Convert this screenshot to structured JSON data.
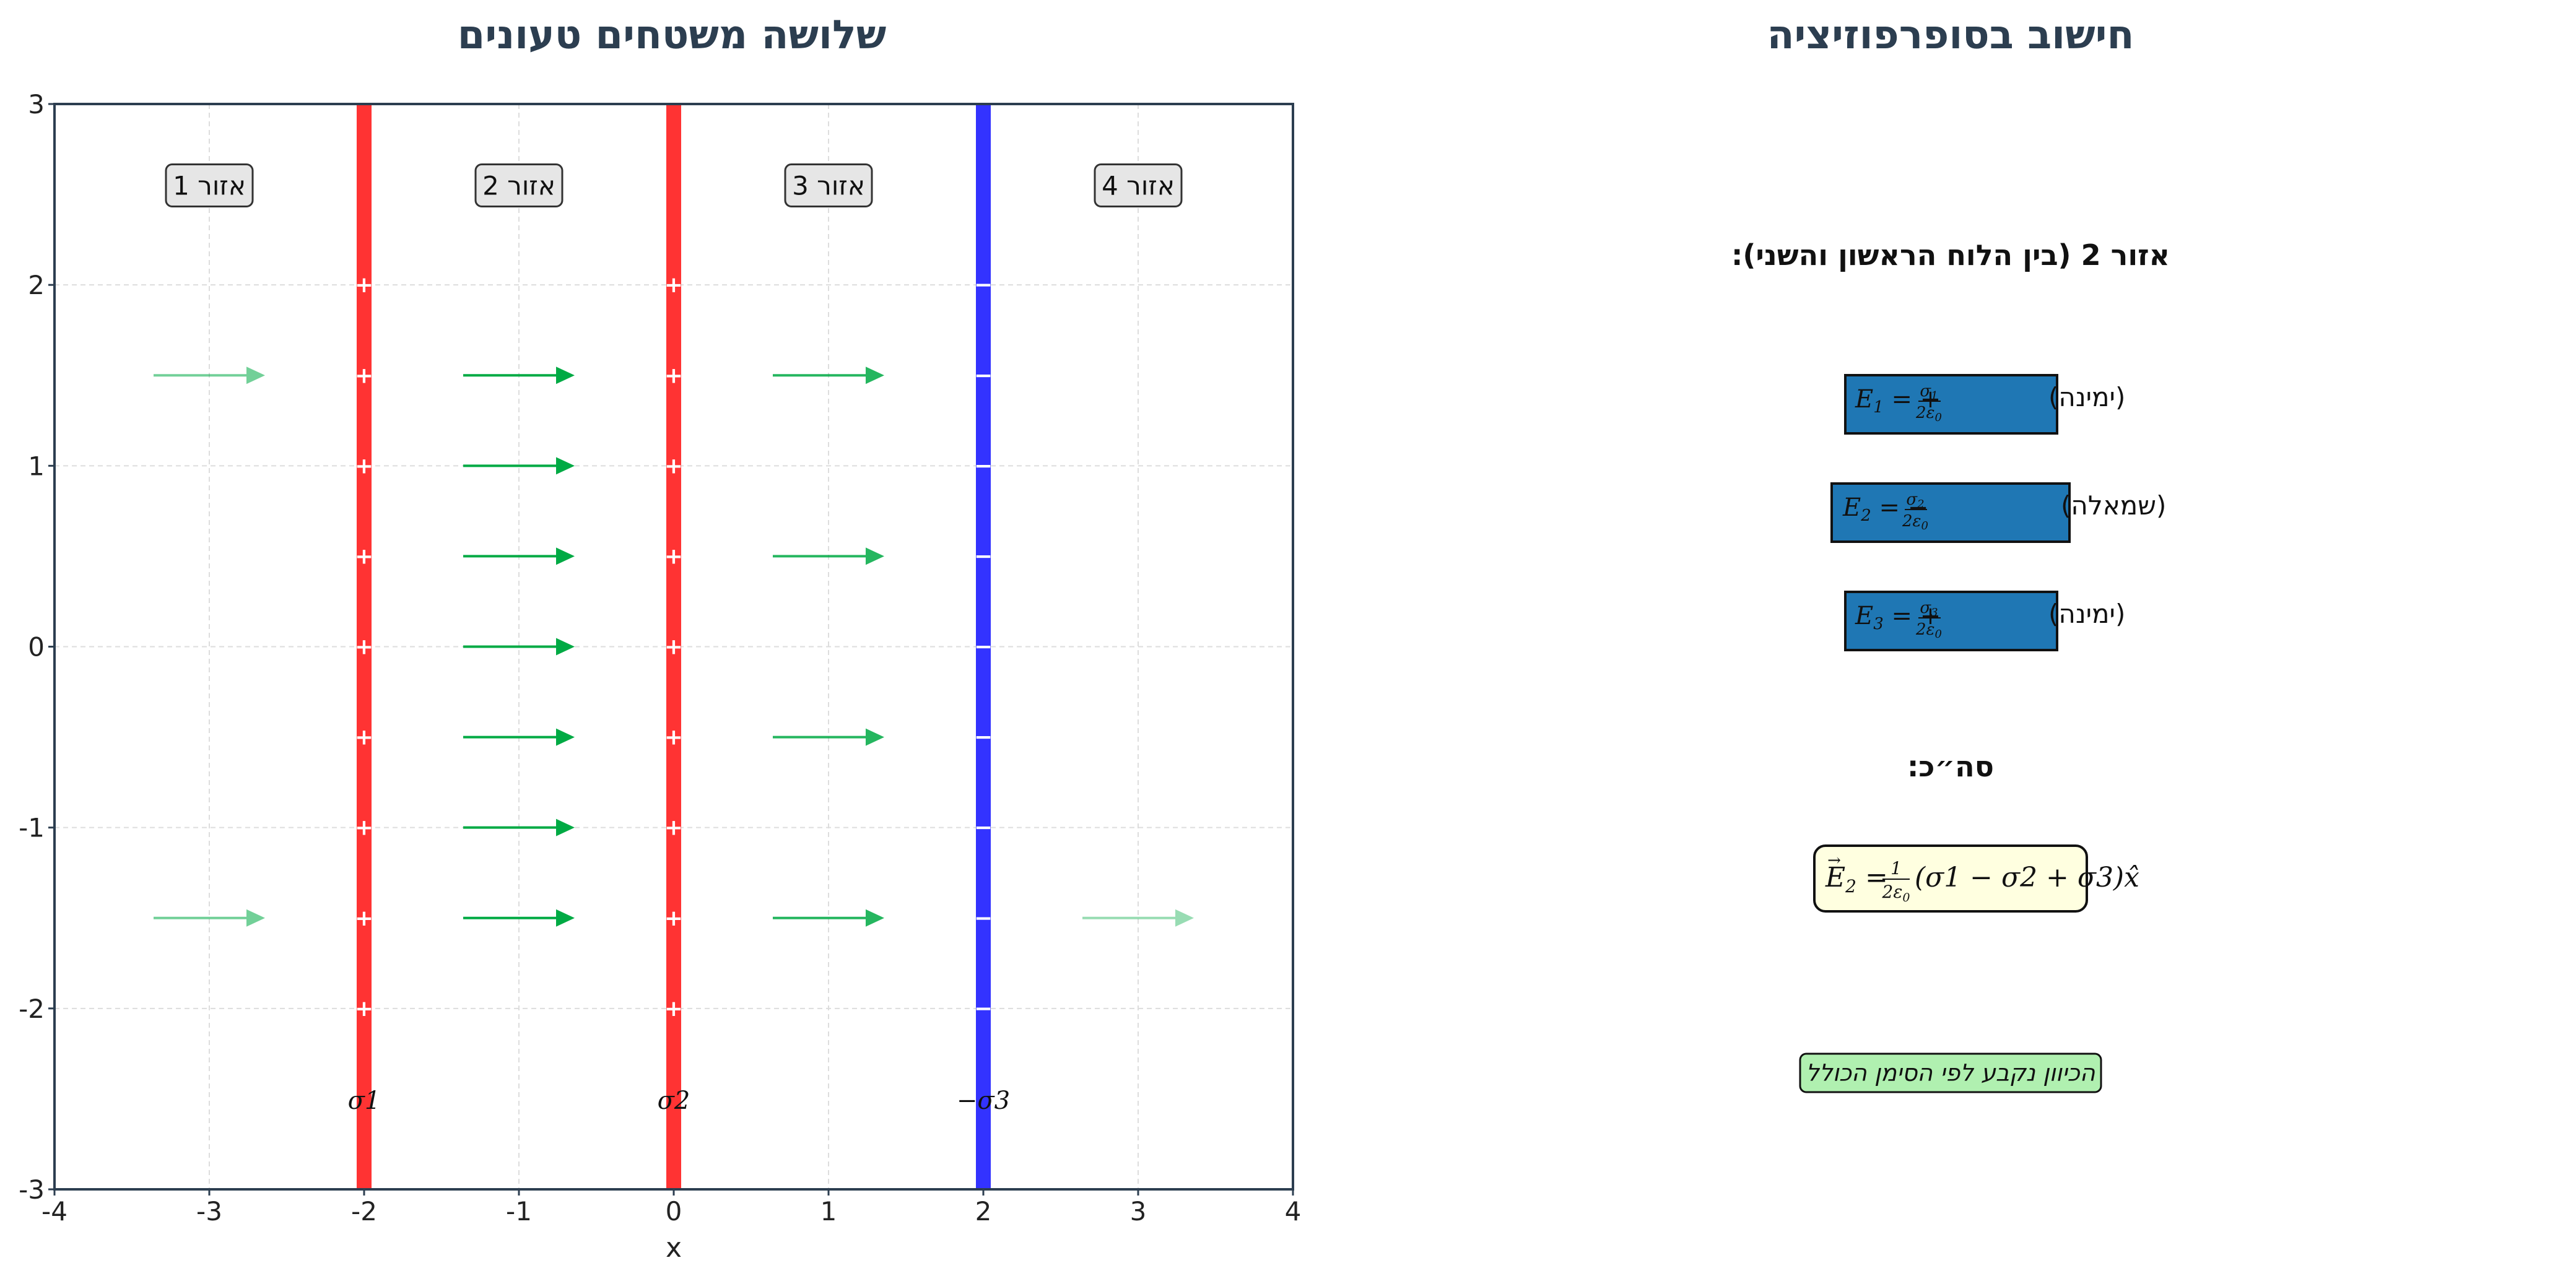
{
  "left_title": "שלושה משטחים טעונים",
  "right_title": "חישוב בסופרפוזיציה",
  "chart_data": {
    "type": "diagram",
    "xlim": [
      -4,
      4
    ],
    "ylim": [
      -3,
      3
    ],
    "x_ticks": [
      "-4",
      "-3",
      "-2",
      "-1",
      "0",
      "1",
      "2",
      "3",
      "4"
    ],
    "y_ticks": [
      "-3",
      "-2",
      "-1",
      "0",
      "1",
      "2",
      "3"
    ],
    "xlabel": "x",
    "grid": true,
    "planes": [
      {
        "x": -2,
        "color": "#ff3333",
        "sign": "+",
        "label": "σ1"
      },
      {
        "x": 0,
        "color": "#ff3333",
        "sign": "+",
        "label": "σ2"
      },
      {
        "x": 2,
        "color": "#3333ff",
        "sign": "−",
        "label": "−σ3"
      }
    ],
    "charge_marks_y": [
      2,
      1.5,
      1,
      0.5,
      0,
      -0.5,
      -1,
      -1.5,
      -2
    ],
    "regions": [
      "אזור 1",
      "אזור 2",
      "אזור 3",
      "אזור 4"
    ],
    "region_label_y": 2.55,
    "field_arrows": [
      {
        "x": -3,
        "y": 1.5,
        "opacity": 0.55
      },
      {
        "x": -3,
        "y": -1.5,
        "opacity": 0.55
      },
      {
        "x": -1,
        "y": 1.5,
        "opacity": 1
      },
      {
        "x": -1,
        "y": 1,
        "opacity": 1
      },
      {
        "x": -1,
        "y": 0.5,
        "opacity": 1
      },
      {
        "x": -1,
        "y": 0,
        "opacity": 1
      },
      {
        "x": -1,
        "y": -0.5,
        "opacity": 1
      },
      {
        "x": -1,
        "y": -1,
        "opacity": 1
      },
      {
        "x": -1,
        "y": -1.5,
        "opacity": 1
      },
      {
        "x": 1,
        "y": 1.5,
        "opacity": 0.85
      },
      {
        "x": 1,
        "y": 0.5,
        "opacity": 0.85
      },
      {
        "x": 1,
        "y": -0.5,
        "opacity": 0.85
      },
      {
        "x": 1,
        "y": -1.5,
        "opacity": 0.85
      },
      {
        "x": 3,
        "y": -1.5,
        "opacity": 0.4
      }
    ],
    "arrow_length": 0.72,
    "arrow_color": "#00aa44"
  },
  "panel": {
    "region_heading": "אזור 2 (בין הלוח הראשון והשני):",
    "terms": [
      {
        "lhs": "E",
        "sub": "1",
        "sign": "+",
        "num": "σ",
        "num_sub": "1",
        "den": "2ε",
        "den_sub": "0",
        "dir": "(ימינה)"
      },
      {
        "lhs": "E",
        "sub": "2",
        "sign": "−",
        "num": "σ",
        "num_sub": "2",
        "den": "2ε",
        "den_sub": "0",
        "dir": "(שמאלה)"
      },
      {
        "lhs": "E",
        "sub": "3",
        "sign": "+",
        "num": "σ",
        "num_sub": "3",
        "den": "2ε",
        "den_sub": "0",
        "dir": "(ימינה)"
      }
    ],
    "total_heading": "סה״כ:",
    "total_formula": {
      "lhs": "E",
      "lhs_sub": "2",
      "frac_num": "1",
      "frac_den": "2ε",
      "frac_den_sub": "0",
      "paren": "(σ1 − σ2 + σ3)",
      "unit": "x̂"
    },
    "note": "הכיוון נקבע לפי הסימן הכולל",
    "colors": {
      "term_box": "#1f77b4",
      "total_box": "#ffffe0",
      "note_box": "#b0f0b0"
    }
  }
}
